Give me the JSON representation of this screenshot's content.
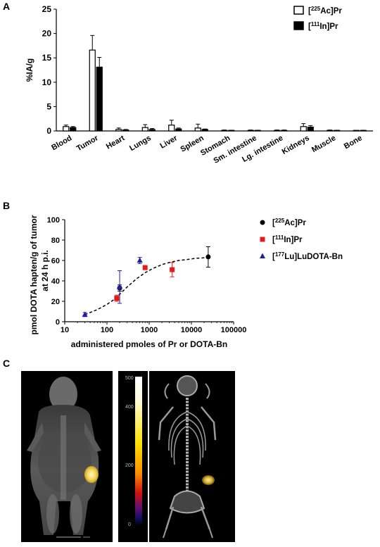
{
  "panels": {
    "a": "A",
    "b": "B",
    "c": "C"
  },
  "chart_data": [
    {
      "type": "bar",
      "panel": "A",
      "ylabel": "%IA/g",
      "ylim": [
        0,
        25
      ],
      "yticks": [
        0,
        5,
        10,
        15,
        20,
        25
      ],
      "categories": [
        "Blood",
        "Tumor",
        "Heart",
        "Lungs",
        "Liver",
        "Spleen",
        "Stomach",
        "Sm. intestine",
        "Lg. intestine",
        "Kidneys",
        "Muscle",
        "Bone"
      ],
      "legend_position": "top-right",
      "series": [
        {
          "name": "[225Ac]Pr",
          "name_parts": {
            "pre": "[",
            "sup": "225",
            "post": "Ac]Pr"
          },
          "style": "open",
          "values": [
            0.9,
            16.6,
            0.3,
            0.7,
            1.2,
            0.6,
            0.1,
            0.1,
            0.1,
            0.9,
            0.1,
            0.05
          ],
          "errors": [
            0.3,
            3.0,
            0.3,
            0.6,
            1.0,
            0.8,
            0.1,
            0.1,
            0.1,
            0.6,
            0.1,
            0.05
          ]
        },
        {
          "name": "[111In]Pr",
          "name_parts": {
            "pre": "[",
            "sup": "111",
            "post": "In]Pr"
          },
          "style": "filled",
          "values": [
            0.7,
            13.1,
            0.2,
            0.3,
            0.4,
            0.3,
            0.1,
            0.1,
            0.1,
            0.8,
            0.1,
            0.1
          ],
          "errors": [
            0.2,
            2.0,
            0.1,
            0.2,
            0.2,
            0.1,
            0.05,
            0.05,
            0.1,
            0.3,
            0.05,
            0.05
          ]
        }
      ]
    },
    {
      "type": "scatter",
      "panel": "B",
      "xlabel": "administered pmoles of Pr or DOTA-Bn",
      "ylabel_lines": [
        "pmol DOTA hapten/g of tumor",
        "at 24 h p.i."
      ],
      "xscale": "log",
      "xlim": [
        10,
        100000
      ],
      "xticks": [
        10,
        100,
        1000,
        10000,
        100000
      ],
      "ylim": [
        0,
        100
      ],
      "yticks": [
        0,
        20,
        40,
        60,
        80,
        100
      ],
      "legend_position": "right",
      "fit": {
        "style": "dashed",
        "x": [
          30,
          60,
          100,
          150,
          200,
          300,
          500,
          800,
          1200,
          2000,
          3000,
          5000,
          8000,
          12000,
          18000,
          25000
        ],
        "y": [
          7,
          12,
          17,
          22,
          27,
          34,
          42,
          48,
          52,
          56,
          58,
          60,
          61,
          62,
          62.5,
          63
        ]
      },
      "series": [
        {
          "name": "[225Ac]Pr",
          "name_parts": {
            "pre": "[",
            "sup": "225",
            "post": "Ac]Pr"
          },
          "marker": "circle",
          "color": "#000000",
          "points": [
            {
              "x": 200,
              "y": 33,
              "err": 3
            },
            {
              "x": 25000,
              "y": 63.5,
              "err": 10
            }
          ]
        },
        {
          "name": "[111In]Pr",
          "name_parts": {
            "pre": "[",
            "sup": "111",
            "post": "In]Pr"
          },
          "marker": "square",
          "color": "#e41a1c",
          "points": [
            {
              "x": 170,
              "y": 23,
              "err": 3
            },
            {
              "x": 800,
              "y": 53,
              "err": 2
            },
            {
              "x": 3500,
              "y": 51,
              "err": 7
            }
          ]
        },
        {
          "name": "[177Lu]LuDOTA-Bn",
          "name_parts": {
            "pre": "[",
            "sup": "177",
            "post": "Lu]LuDOTA-Bn"
          },
          "marker": "triangle",
          "color": "#1f1fa0",
          "points": [
            {
              "x": 30,
              "y": 7,
              "err": 2
            },
            {
              "x": 200,
              "y": 34,
              "err": 16
            },
            {
              "x": 600,
              "y": 60,
              "err": 3
            }
          ]
        }
      ]
    }
  ],
  "imaging": {
    "colorbar_ticks": [
      "500",
      "400",
      "200",
      "0"
    ]
  }
}
